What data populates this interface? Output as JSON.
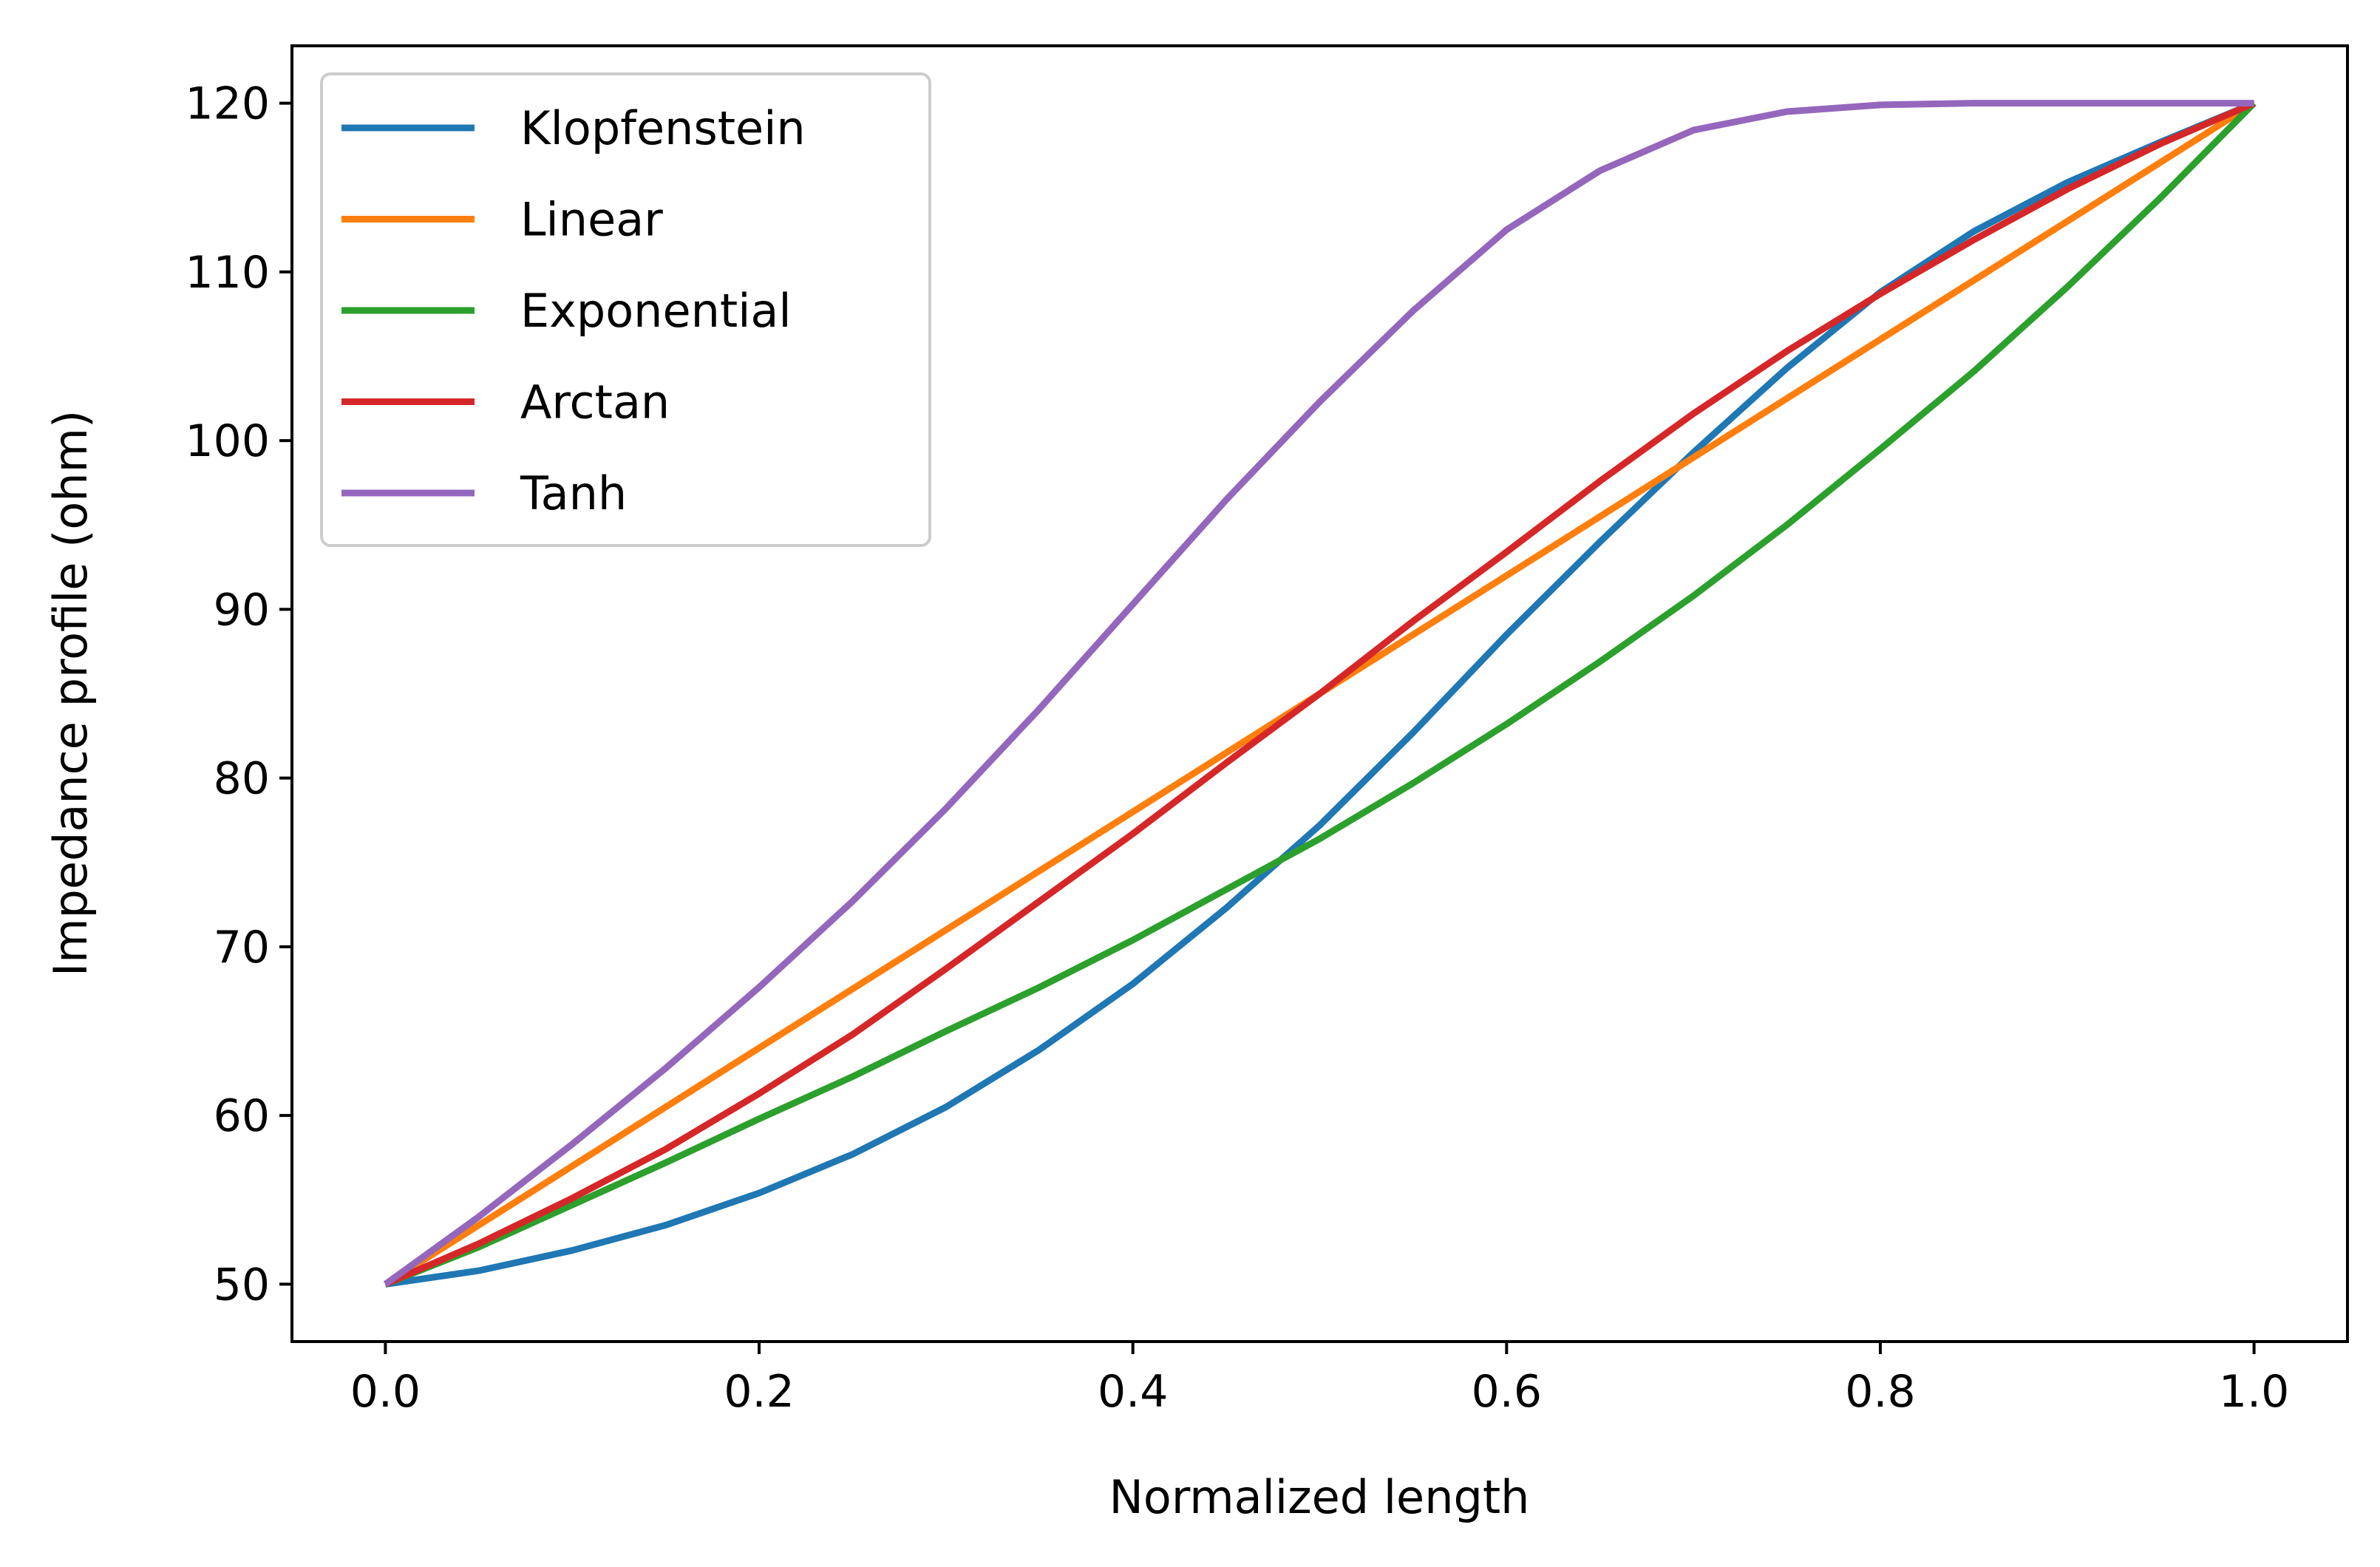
{
  "chart_data": {
    "type": "line",
    "title": "",
    "xlabel": "Normalized length",
    "ylabel": "Impedance profile (ohm)",
    "xlim": [
      -0.05,
      1.05
    ],
    "ylim": [
      46.6,
      123.4
    ],
    "xticks": [
      0.0,
      0.2,
      0.4,
      0.6,
      0.8,
      1.0
    ],
    "xtick_labels": [
      "0.0",
      "0.2",
      "0.4",
      "0.6",
      "0.8",
      "1.0"
    ],
    "yticks": [
      50,
      60,
      70,
      80,
      90,
      100,
      110,
      120
    ],
    "ytick_labels": [
      "50",
      "60",
      "70",
      "80",
      "90",
      "100",
      "110",
      "120"
    ],
    "grid": false,
    "legend_position": "upper-left",
    "x": [
      0.0,
      0.05,
      0.1,
      0.15,
      0.2,
      0.25,
      0.3,
      0.35,
      0.4,
      0.45,
      0.5,
      0.55,
      0.6,
      0.65,
      0.7,
      0.75,
      0.8,
      0.85,
      0.9,
      0.95,
      1.0
    ],
    "series": [
      {
        "name": "Klopfenstein",
        "color": "#1f77b4",
        "values": [
          50.0,
          50.8,
          52.0,
          53.5,
          55.4,
          57.7,
          60.5,
          63.9,
          67.8,
          72.3,
          77.2,
          82.7,
          88.5,
          94.0,
          99.3,
          104.3,
          108.8,
          112.4,
          115.3,
          117.7,
          120.0
        ]
      },
      {
        "name": "Linear",
        "color": "#ff7f0e",
        "values": [
          50.0,
          53.5,
          57.0,
          60.5,
          64.0,
          67.5,
          71.0,
          74.5,
          78.0,
          81.5,
          85.0,
          88.5,
          92.0,
          95.5,
          99.0,
          102.5,
          106.0,
          109.5,
          113.0,
          116.5,
          120.0
        ]
      },
      {
        "name": "Exponential",
        "color": "#2ca02c",
        "values": [
          50.0,
          52.2,
          54.7,
          57.2,
          59.8,
          62.3,
          65.0,
          67.6,
          70.4,
          73.4,
          76.4,
          79.7,
          83.2,
          86.9,
          90.8,
          95.0,
          99.5,
          104.1,
          109.1,
          114.4,
          120.0
        ]
      },
      {
        "name": "Arctan",
        "color": "#d62728",
        "values": [
          50.0,
          52.4,
          55.1,
          58.0,
          61.3,
          64.8,
          68.7,
          72.7,
          76.7,
          80.9,
          85.0,
          89.3,
          93.4,
          97.6,
          101.6,
          105.3,
          108.7,
          111.9,
          114.9,
          117.6,
          120.0
        ]
      },
      {
        "name": "Tanh",
        "color": "#9467bd",
        "values": [
          50.0,
          54.0,
          58.3,
          62.8,
          67.6,
          72.7,
          78.2,
          84.1,
          90.3,
          96.5,
          102.3,
          107.7,
          112.5,
          116.0,
          118.4,
          119.5,
          119.9,
          120.0,
          120.0,
          120.0,
          120.0
        ]
      }
    ]
  }
}
